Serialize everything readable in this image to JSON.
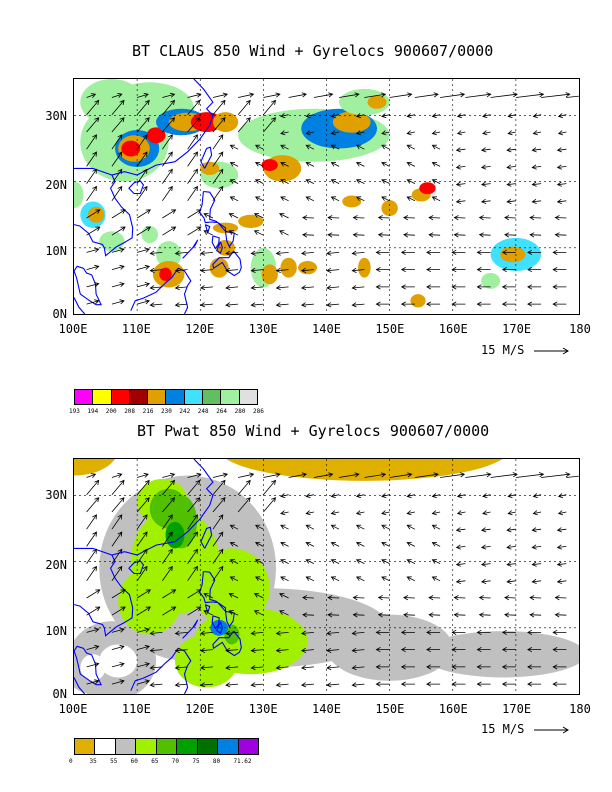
{
  "top": {
    "title": "BT CLAUS 850 Wind + Gyrelocs 900607/0000",
    "y_ticks": [
      "30N",
      "20N",
      "10N",
      "0N"
    ],
    "x_ticks": [
      "100E",
      "110E",
      "120E",
      "130E",
      "140E",
      "150E",
      "160E",
      "170E",
      "180"
    ],
    "ref_vector": "15 M/S",
    "colorbar": {
      "colors": [
        "#ff00ff",
        "#ffff00",
        "#ff0000",
        "#a00000",
        "#e0a000",
        "#0080e0",
        "#40e0ff",
        "#60c060",
        "#a0f0a0",
        "#e0e0e0"
      ],
      "labels": [
        "193",
        "194",
        "200",
        "208",
        "216",
        "230",
        "242",
        "248",
        "264",
        "280",
        "286"
      ]
    }
  },
  "bottom": {
    "title": "BT Pwat 850 Wind + Gyrelocs 900607/0000",
    "y_ticks": [
      "30N",
      "20N",
      "10N",
      "0N"
    ],
    "x_ticks": [
      "100E",
      "110E",
      "120E",
      "130E",
      "140E",
      "150E",
      "160E",
      "170E",
      "180"
    ],
    "ref_vector": "15 M/S",
    "colorbar": {
      "colors": [
        "#e0b000",
        "#ffffff",
        "#c0c0c0",
        "#a0f000",
        "#50c000",
        "#00a000",
        "#007000",
        "#0080e0",
        "#a000e0"
      ],
      "labels": [
        "0",
        "35",
        "55",
        "60",
        "65",
        "70",
        "75",
        "80",
        "71.62"
      ]
    }
  }
}
